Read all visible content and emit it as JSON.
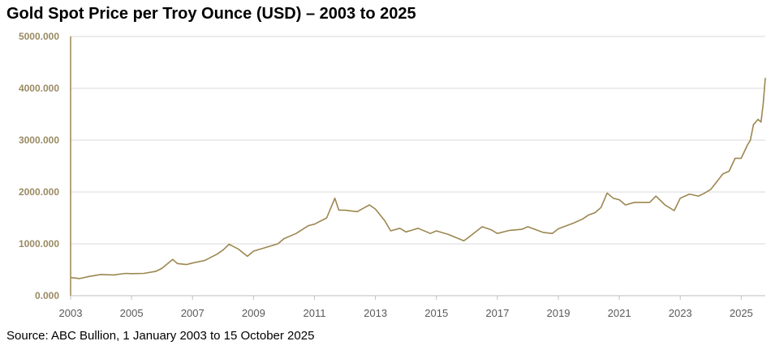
{
  "chart_data": {
    "type": "line",
    "title": "Gold Spot Price per Troy Ounce (USD) – 2003 to 2025",
    "source": "Source: ABC Bullion, 1 January 2003 to 15 October 2025",
    "xlabel": "",
    "ylabel": "",
    "xlim": [
      2003.0,
      2025.79
    ],
    "ylim": [
      0,
      5000
    ],
    "y_ticks": [
      "0.000",
      "1000.000",
      "2000.000",
      "3000.000",
      "4000.000",
      "5000.000"
    ],
    "x_ticks": [
      "2003",
      "2005",
      "2007",
      "2009",
      "2011",
      "2013",
      "2015",
      "2017",
      "2019",
      "2021",
      "2023",
      "2025"
    ],
    "grid": "horizontal",
    "legend": "none",
    "color": "#9c8750",
    "series": [
      {
        "x": [
          2003.0,
          2003.3,
          2003.6,
          2004.0,
          2004.4,
          2004.8,
          2005.0,
          2005.4,
          2005.8,
          2006.0,
          2006.35,
          2006.5,
          2006.8,
          2007.0,
          2007.4,
          2007.8,
          2008.0,
          2008.2,
          2008.5,
          2008.8,
          2009.0,
          2009.4,
          2009.8,
          2010.0,
          2010.4,
          2010.8,
          2011.0,
          2011.4,
          2011.67,
          2011.8,
          2012.0,
          2012.4,
          2012.8,
          2013.0,
          2013.3,
          2013.5,
          2013.8,
          2014.0,
          2014.4,
          2014.8,
          2015.0,
          2015.4,
          2015.9,
          2016.0,
          2016.5,
          2016.8,
          2017.0,
          2017.4,
          2017.8,
          2018.0,
          2018.5,
          2018.8,
          2019.0,
          2019.5,
          2019.8,
          2020.0,
          2020.2,
          2020.4,
          2020.6,
          2020.8,
          2021.0,
          2021.2,
          2021.5,
          2021.8,
          2022.0,
          2022.2,
          2022.5,
          2022.8,
          2023.0,
          2023.3,
          2023.6,
          2023.8,
          2024.0,
          2024.2,
          2024.4,
          2024.6,
          2024.8,
          2025.0,
          2025.2,
          2025.3,
          2025.4,
          2025.55,
          2025.65,
          2025.72,
          2025.79
        ],
        "values": [
          350,
          330,
          370,
          410,
          400,
          430,
          425,
          430,
          470,
          530,
          700,
          620,
          600,
          630,
          680,
          800,
          880,
          990,
          900,
          760,
          860,
          930,
          1000,
          1100,
          1200,
          1350,
          1380,
          1500,
          1880,
          1650,
          1650,
          1620,
          1750,
          1670,
          1450,
          1250,
          1300,
          1230,
          1300,
          1200,
          1250,
          1180,
          1060,
          1100,
          1330,
          1270,
          1200,
          1260,
          1280,
          1330,
          1220,
          1200,
          1290,
          1400,
          1480,
          1560,
          1600,
          1700,
          1980,
          1880,
          1850,
          1750,
          1800,
          1800,
          1800,
          1920,
          1750,
          1640,
          1880,
          1960,
          1920,
          1980,
          2050,
          2200,
          2350,
          2400,
          2650,
          2650,
          2900,
          3000,
          3300,
          3400,
          3350,
          3700,
          4200
        ]
      }
    ]
  }
}
